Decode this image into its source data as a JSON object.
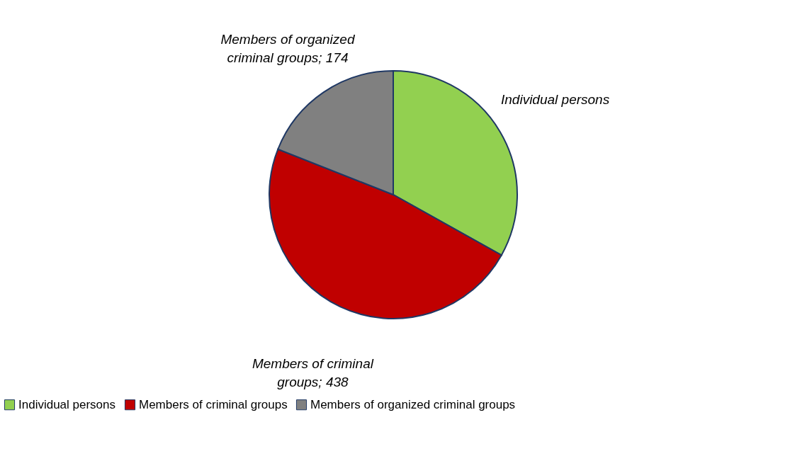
{
  "chart_data": {
    "type": "pie",
    "categories": [
      "Individual persons",
      "Members of criminal groups",
      "Members of organized criminal groups"
    ],
    "values": [
      303,
      438,
      174
    ],
    "colors": [
      "#92d050",
      "#c00000",
      "#808080"
    ],
    "value_labels": [
      "Individual persons",
      "Members of criminal groups; 438",
      "Members of organized criminal groups; 174"
    ],
    "legend": "bottom"
  }
}
